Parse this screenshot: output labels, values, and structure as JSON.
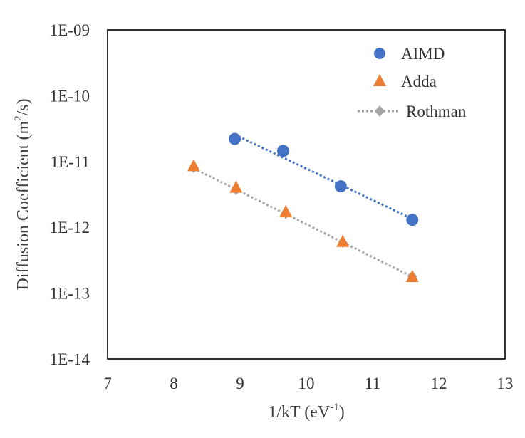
{
  "chart_data": {
    "type": "scatter",
    "xlabel": "1/kT (eV-1)",
    "xlabel_main": "1/kT (eV",
    "xlabel_sup": "-1",
    "xlabel_end": ")",
    "ylabel": "Diffusion Coefficient (m2/s)",
    "ylabel_main": "Diffusion Coefficient (m",
    "ylabel_sup": "2",
    "ylabel_end": "/s)",
    "xlim": [
      7,
      13
    ],
    "ylim": [
      1e-14,
      1e-09
    ],
    "yscale": "log",
    "grid": false,
    "legend_position": "top-right",
    "x_ticks": [
      "7",
      "8",
      "9",
      "10",
      "11",
      "12",
      "13"
    ],
    "y_ticks": [
      "1E-14",
      "1E-13",
      "1E-12",
      "1E-11",
      "1E-10",
      "1E-09"
    ],
    "series": [
      {
        "name": "AIMD",
        "marker": "circle",
        "color": "#4472C4",
        "trendline": true,
        "x": [
          8.92,
          9.65,
          10.52,
          11.6
        ],
        "y": [
          2.2e-11,
          1.45e-11,
          4.2e-12,
          1.3e-12
        ]
      },
      {
        "name": "Adda",
        "marker": "triangle",
        "color": "#ED7D31",
        "trendline": false,
        "x": [
          8.3,
          8.94,
          9.69,
          10.55,
          11.6
        ],
        "y": [
          8.5e-12,
          4e-12,
          1.7e-12,
          6e-13,
          1.75e-13
        ]
      },
      {
        "name": "Rothman",
        "marker": "diamond",
        "color": "#A5A5A5",
        "trendline": true,
        "x": [
          8.3,
          8.94,
          9.69,
          10.55,
          11.6
        ],
        "y": [
          8e-12,
          3.7e-12,
          1.6e-12,
          5.8e-13,
          1.8e-13
        ]
      }
    ]
  }
}
